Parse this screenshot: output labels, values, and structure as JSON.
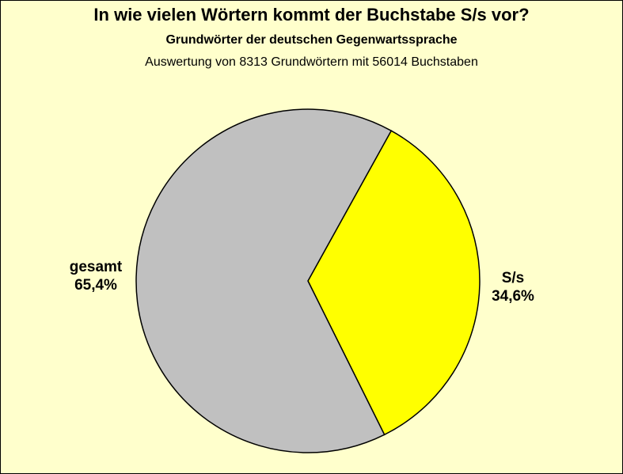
{
  "chart_data": {
    "type": "pie",
    "title": "In wie vielen Wörtern kommt der Buchstabe S/s vor?",
    "subtitle": "Grundwörter der deutschen Gegenwartssprache",
    "subtitle2": "Auswertung von 8313 Grundwörtern mit 56014 Buchstaben",
    "slices": [
      {
        "label": "S/s",
        "value": 34.6,
        "value_label": "34,6%",
        "color": "#FFFF00"
      },
      {
        "label": "gesamt",
        "value": 65.4,
        "value_label": "65,4%",
        "color": "#C0C0C0"
      }
    ],
    "start_angle_deg": 29,
    "background": "#FFFFCC"
  }
}
